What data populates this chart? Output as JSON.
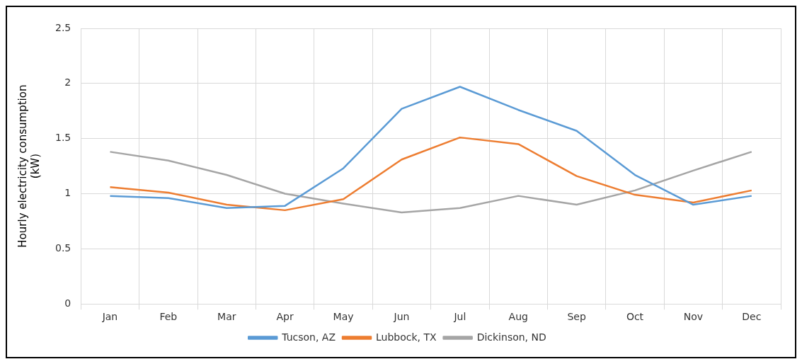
{
  "chart_data": {
    "type": "line",
    "ylabel": "Hourly electricity consumption (kW)",
    "categories": [
      "Jan",
      "Feb",
      "Mar",
      "Apr",
      "May",
      "Jun",
      "Jul",
      "Aug",
      "Sep",
      "Oct",
      "Nov",
      "Dec"
    ],
    "series": [
      {
        "name": "Tucson, AZ",
        "color": "#5b9bd5",
        "values": [
          0.98,
          0.96,
          0.87,
          0.89,
          1.23,
          1.77,
          1.97,
          1.76,
          1.57,
          1.17,
          0.9,
          0.98
        ]
      },
      {
        "name": "Lubbock, TX",
        "color": "#ed7d31",
        "values": [
          1.06,
          1.01,
          0.9,
          0.85,
          0.95,
          1.31,
          1.51,
          1.45,
          1.16,
          0.99,
          0.92,
          1.03
        ]
      },
      {
        "name": "Dickinson, ND",
        "color": "#a5a5a5",
        "values": [
          1.38,
          1.3,
          1.17,
          1.0,
          0.91,
          0.83,
          0.87,
          0.98,
          0.9,
          1.03,
          1.21,
          1.38
        ]
      }
    ],
    "ylim": [
      0,
      2.5
    ],
    "yticks": [
      0,
      0.5,
      1,
      1.5,
      2,
      2.5
    ],
    "grid": true,
    "legend": "bottom",
    "marker": "none",
    "line_style": "solid"
  }
}
